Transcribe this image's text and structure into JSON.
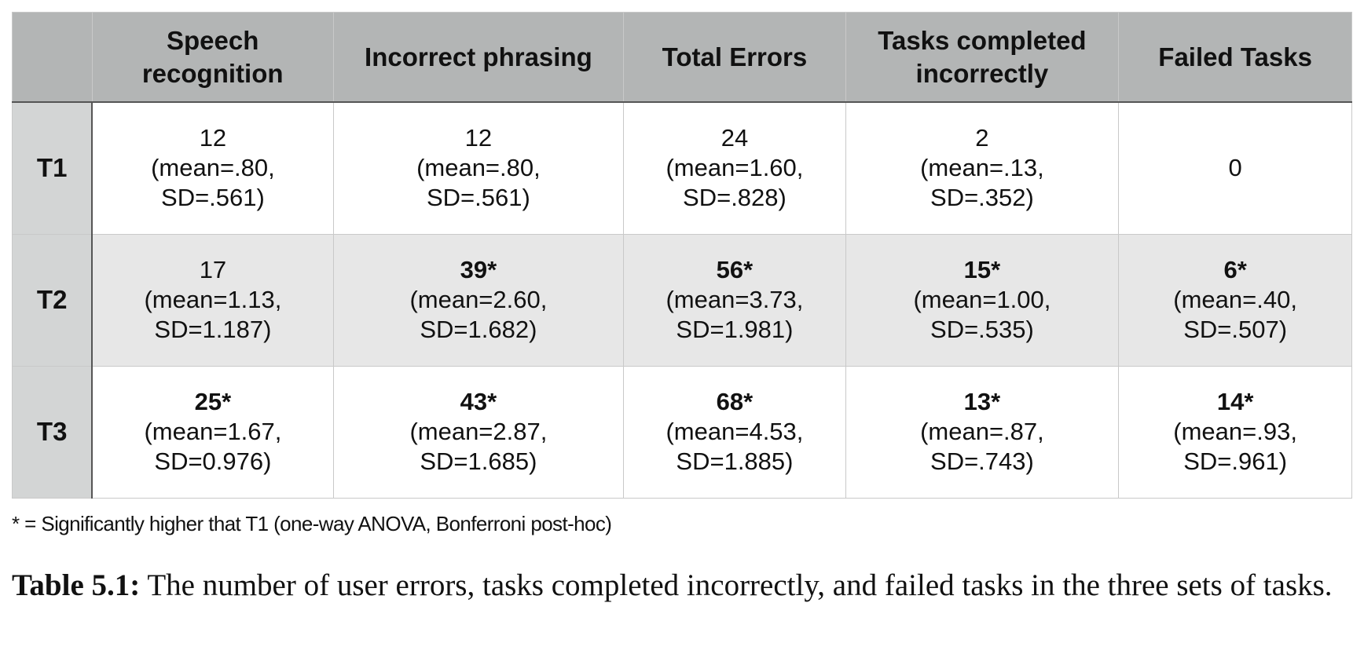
{
  "table": {
    "corner": "",
    "columns": [
      "Speech\nrecognition",
      "Incorrect phrasing",
      "Total Errors",
      "Tasks completed\nincorrectly",
      "Failed Tasks"
    ],
    "rows": [
      {
        "label": "T1",
        "cells": [
          {
            "count": "12",
            "significant": false,
            "mean": "(mean=.80,",
            "sd": "SD=.561)"
          },
          {
            "count": "12",
            "significant": false,
            "mean": "(mean=.80,",
            "sd": "SD=.561)"
          },
          {
            "count": "24",
            "significant": false,
            "mean": "(mean=1.60,",
            "sd": "SD=.828)"
          },
          {
            "count": "2",
            "significant": false,
            "mean": "(mean=.13,",
            "sd": "SD=.352)"
          },
          {
            "count": "0",
            "significant": false,
            "mean": "",
            "sd": ""
          }
        ]
      },
      {
        "label": "T2",
        "cells": [
          {
            "count": "17",
            "significant": false,
            "mean": "(mean=1.13,",
            "sd": "SD=1.187)"
          },
          {
            "count": "39*",
            "significant": true,
            "mean": "(mean=2.60,",
            "sd": "SD=1.682)"
          },
          {
            "count": "56*",
            "significant": true,
            "mean": "(mean=3.73,",
            "sd": "SD=1.981)"
          },
          {
            "count": "15*",
            "significant": true,
            "mean": "(mean=1.00,",
            "sd": "SD=.535)"
          },
          {
            "count": "6*",
            "significant": true,
            "mean": "(mean=.40,",
            "sd": "SD=.507)"
          }
        ]
      },
      {
        "label": "T3",
        "cells": [
          {
            "count": "25*",
            "significant": true,
            "mean": "(mean=1.67,",
            "sd": "SD=0.976)"
          },
          {
            "count": "43*",
            "significant": true,
            "mean": "(mean=2.87,",
            "sd": "SD=1.685)"
          },
          {
            "count": "68*",
            "significant": true,
            "mean": "(mean=4.53,",
            "sd": "SD=1.885)"
          },
          {
            "count": "13*",
            "significant": true,
            "mean": "(mean=.87,",
            "sd": "SD=.743)"
          },
          {
            "count": "14*",
            "significant": true,
            "mean": "(mean=.93,",
            "sd": "SD=.961)"
          }
        ]
      }
    ]
  },
  "footnote": "* = Significantly higher that T1 (one-way ANOVA, Bonferroni post-hoc)",
  "caption": {
    "label": "Table 5.1:",
    "text": "The number of user errors, tasks completed incorrectly, and failed tasks in the three sets of tasks."
  },
  "colors": {
    "header_bg": "#b3b5b5",
    "row_label_bg": "#d3d5d5",
    "shaded_row_bg": "#e7e7e7"
  }
}
